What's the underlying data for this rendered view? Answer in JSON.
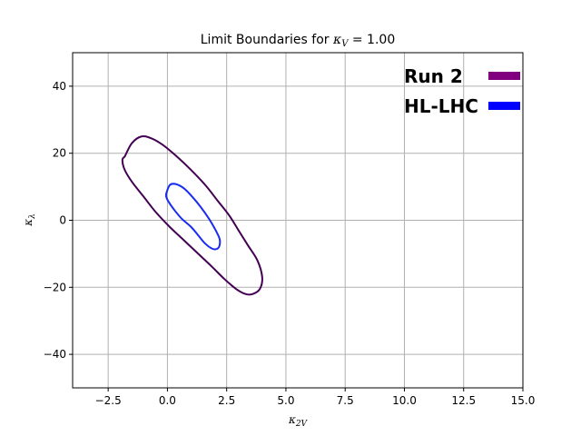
{
  "chart_data": {
    "type": "contour",
    "title": "Limit Boundaries for κ_V = 1.00",
    "title_main": "Limit Boundaries for ",
    "title_math": "κ",
    "title_sub": "V",
    "title_value": " = 1.00",
    "xlabel": "κ_2V",
    "xlabel_main": "κ",
    "xlabel_sub": "2V",
    "ylabel": "κ_λ",
    "ylabel_main": "κ",
    "ylabel_sub": "λ",
    "xlim": [
      -4.0,
      15.0
    ],
    "ylim": [
      -50,
      50
    ],
    "x_ticks": [
      -2.5,
      0.0,
      2.5,
      5.0,
      7.5,
      10.0,
      12.5,
      15.0
    ],
    "x_tick_labels": [
      "−2.5",
      "0.0",
      "2.5",
      "5.0",
      "7.5",
      "10.0",
      "12.5",
      "15.0"
    ],
    "y_ticks": [
      -40,
      -20,
      0,
      20,
      40
    ],
    "y_tick_labels": [
      "−40",
      "−20",
      "0",
      "20",
      "40"
    ],
    "grid": true,
    "legend_position": "top-right",
    "series": [
      {
        "name": "Run 2",
        "color": "#800080",
        "line_color": "#440154",
        "x": [
          -1.8,
          -1.5,
          -1.1,
          -0.7,
          -0.2,
          0.4,
          1.0,
          1.6,
          2.1,
          2.6,
          3.0,
          3.4,
          3.8,
          4.0,
          3.9,
          3.6,
          3.3,
          2.9,
          2.4,
          1.9,
          1.3,
          0.7,
          0.1,
          -0.5,
          -1.0,
          -1.5,
          -1.8,
          -1.9,
          -1.8
        ],
        "y": [
          19.0,
          23.0,
          25.0,
          24.5,
          22.5,
          19.0,
          15.0,
          10.5,
          6.0,
          1.5,
          -3.0,
          -7.5,
          -12.0,
          -17.0,
          -20.5,
          -22.0,
          -22.0,
          -20.5,
          -17.5,
          -14.0,
          -10.0,
          -6.0,
          -2.0,
          2.5,
          7.0,
          11.5,
          15.0,
          18.0,
          19.0
        ]
      },
      {
        "name": "HL-LHC",
        "color": "#0000ff",
        "line_color": "#1a2cf0",
        "x": [
          -0.05,
          0.1,
          0.35,
          0.7,
          1.05,
          1.4,
          1.75,
          2.0,
          2.2,
          2.2,
          2.1,
          1.9,
          1.6,
          1.3,
          1.0,
          0.6,
          0.3,
          0.05,
          -0.05,
          -0.05
        ],
        "y": [
          8.0,
          10.5,
          10.8,
          9.5,
          7.0,
          4.0,
          0.5,
          -2.5,
          -5.5,
          -7.5,
          -8.5,
          -8.5,
          -7.0,
          -4.5,
          -2.0,
          0.5,
          3.0,
          5.5,
          7.0,
          8.0
        ]
      }
    ]
  }
}
